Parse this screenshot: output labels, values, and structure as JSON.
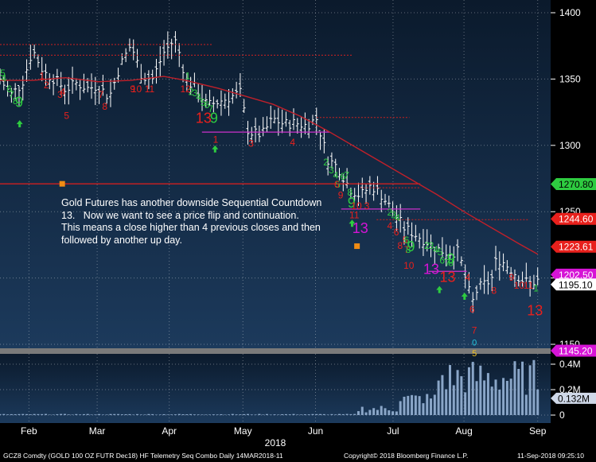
{
  "chart_data": [
    {
      "type": "candlestick",
      "title": "",
      "x_axis": {
        "month_labels": [
          "Feb",
          "Mar",
          "Apr",
          "May",
          "Jun",
          "Jul",
          "Aug",
          "Sep"
        ],
        "year_label": "2018"
      },
      "y_axis": {
        "ylim": [
          1145,
          1410
        ],
        "ticks": [
          1400,
          1350,
          1300,
          1250,
          1200,
          1150
        ],
        "side": "right"
      },
      "price_labels": [
        {
          "value": "1270.80",
          "price": 1270.8,
          "color": "#2ecc40",
          "text_color": "#000000"
        },
        {
          "value": "1244.60",
          "price": 1244.6,
          "color": "#e8201c",
          "text_color": "#ffffff"
        },
        {
          "value": "1223.61",
          "price": 1223.61,
          "color": "#e8201c",
          "text_color": "#ffffff"
        },
        {
          "value": "1202.50",
          "price": 1202.5,
          "color": "#d614d6",
          "text_color": "#ffffff"
        },
        {
          "value": "1195.10",
          "price": 1195.1,
          "color": "#ffffff",
          "text_color": "#000000"
        },
        {
          "value": "1145.20",
          "price": 1145.2,
          "color": "#d614d6",
          "text_color": "#ffffff"
        }
      ],
      "moving_average": {
        "color": "#c0202a",
        "points": [
          [
            0.0,
            1349
          ],
          [
            0.06,
            1349
          ],
          [
            0.12,
            1351
          ],
          [
            0.18,
            1348
          ],
          [
            0.24,
            1349
          ],
          [
            0.3,
            1352
          ],
          [
            0.34,
            1349
          ],
          [
            0.4,
            1343
          ],
          [
            0.45,
            1337
          ],
          [
            0.5,
            1331
          ],
          [
            0.55,
            1322
          ],
          [
            0.6,
            1311
          ],
          [
            0.65,
            1299
          ],
          [
            0.7,
            1287
          ],
          [
            0.75,
            1275
          ],
          [
            0.8,
            1263
          ],
          [
            0.85,
            1250
          ],
          [
            0.9,
            1238
          ],
          [
            0.95,
            1226
          ],
          [
            0.985,
            1218
          ]
        ]
      },
      "horizontal_levels": [
        {
          "price": 1376,
          "x0": 0.0,
          "x1": 0.39,
          "color": "#d02020",
          "style": "dotted"
        },
        {
          "price": 1368,
          "x0": 0.0,
          "x1": 0.645,
          "color": "#d02020",
          "style": "dotted"
        },
        {
          "price": 1321,
          "x0": 0.58,
          "x1": 0.75,
          "color": "#d02020",
          "style": "dotted"
        },
        {
          "price": 1271,
          "x0": 0.0,
          "x1": 0.77,
          "color": "#d02020",
          "style": "solid"
        },
        {
          "price": 1268,
          "x0": 0.66,
          "x1": 0.77,
          "color": "#d02020",
          "style": "dotted"
        },
        {
          "price": 1244,
          "x0": 0.69,
          "x1": 0.97,
          "color": "#d02020",
          "style": "dotted"
        },
        {
          "price": 1310,
          "x0": 0.37,
          "x1": 0.605,
          "color": "#cc30cc",
          "style": "solid"
        },
        {
          "price": 1252,
          "x0": 0.625,
          "x1": 0.77,
          "color": "#cc30cc",
          "style": "solid"
        },
        {
          "price": 1205,
          "x0": 0.785,
          "x1": 0.855,
          "color": "#cc30cc",
          "style": "solid"
        }
      ],
      "volume": {
        "ylim": [
          0,
          460000
        ],
        "ticks": [
          {
            "value": 400000,
            "label": "0.4M"
          },
          {
            "value": 200000,
            "label": "0.2M"
          },
          {
            "value": 0,
            "label": "0"
          }
        ],
        "last_label": "0.132M",
        "last_value": 132000
      },
      "annotations": [
        {
          "text": "9",
          "x": 0.035,
          "price": 1329,
          "color": "#2ecc40",
          "size": 18
        },
        {
          "text": "13",
          "x": 0.373,
          "price": 1317,
          "color": "#e8201c",
          "size": 18
        },
        {
          "text": "9",
          "x": 0.392,
          "price": 1317,
          "color": "#2ecc40",
          "size": 18
        },
        {
          "text": "9",
          "x": 0.644,
          "price": 1253,
          "color": "#2ecc40",
          "size": 18
        },
        {
          "text": "13",
          "x": 0.66,
          "price": 1234,
          "color": "#d614d6",
          "size": 18
        },
        {
          "text": "9",
          "x": 0.753,
          "price": 1220,
          "color": "#2ecc40",
          "size": 18
        },
        {
          "text": "13",
          "x": 0.79,
          "price": 1203,
          "color": "#d614d6",
          "size": 18
        },
        {
          "text": "13",
          "x": 0.82,
          "price": 1197,
          "color": "#e8201c",
          "size": 18
        },
        {
          "text": "9",
          "x": 0.826,
          "price": 1211,
          "color": "#2ecc40",
          "size": 18
        },
        {
          "text": "13",
          "x": 0.98,
          "price": 1172,
          "color": "#e8201c",
          "size": 18
        },
        {
          "text": "4",
          "x": 0.007,
          "price": 1348,
          "color": "#2ecc40",
          "size": 12
        },
        {
          "text": "6",
          "x": 0.017,
          "price": 1340,
          "color": "#2ecc40",
          "size": 12
        },
        {
          "text": "5",
          "x": 0.005,
          "price": 1352,
          "color": "#2ecc40",
          "size": 12
        },
        {
          "text": "8",
          "x": 0.028,
          "price": 1331,
          "color": "#2ecc40",
          "size": 12
        },
        {
          "text": "7",
          "x": 0.021,
          "price": 1336,
          "color": "#2ecc40",
          "size": 12
        },
        {
          "text": "1",
          "x": 0.077,
          "price": 1350,
          "color": "#e8201c",
          "size": 12
        },
        {
          "text": "2",
          "x": 0.085,
          "price": 1343,
          "color": "#e8201c",
          "size": 12
        },
        {
          "text": "3",
          "x": 0.11,
          "price": 1336,
          "color": "#e8201c",
          "size": 12
        },
        {
          "text": "4",
          "x": 0.115,
          "price": 1338,
          "color": "#e8201c",
          "size": 12
        },
        {
          "text": "5",
          "x": 0.122,
          "price": 1320,
          "color": "#e8201c",
          "size": 12
        },
        {
          "text": "7",
          "x": 0.185,
          "price": 1336,
          "color": "#e8201c",
          "size": 12
        },
        {
          "text": "8",
          "x": 0.192,
          "price": 1327,
          "color": "#e8201c",
          "size": 12
        },
        {
          "text": "9",
          "x": 0.243,
          "price": 1340,
          "color": "#e8201c",
          "size": 12
        },
        {
          "text": "10",
          "x": 0.25,
          "price": 1340,
          "color": "#e8201c",
          "size": 12
        },
        {
          "text": "11",
          "x": 0.274,
          "price": 1340,
          "color": "#e8201c",
          "size": 12
        },
        {
          "text": "1",
          "x": 0.344,
          "price": 1350,
          "color": "#2ecc40",
          "size": 12
        },
        {
          "text": "2",
          "x": 0.35,
          "price": 1338,
          "color": "#2ecc40",
          "size": 12
        },
        {
          "text": "3",
          "x": 0.357,
          "price": 1337,
          "color": "#2ecc40",
          "size": 12
        },
        {
          "text": "4",
          "x": 0.364,
          "price": 1334,
          "color": "#2ecc40",
          "size": 12
        },
        {
          "text": "5",
          "x": 0.372,
          "price": 1330,
          "color": "#2ecc40",
          "size": 12
        },
        {
          "text": "6",
          "x": 0.379,
          "price": 1328,
          "color": "#2ecc40",
          "size": 12
        },
        {
          "text": "7",
          "x": 0.386,
          "price": 1325,
          "color": "#2ecc40",
          "size": 12
        },
        {
          "text": "12",
          "x": 0.34,
          "price": 1340,
          "color": "#e8201c",
          "size": 12
        },
        {
          "text": "1",
          "x": 0.395,
          "price": 1302,
          "color": "#e8201c",
          "size": 12
        },
        {
          "text": "3",
          "x": 0.46,
          "price": 1299,
          "color": "#e8201c",
          "size": 12
        },
        {
          "text": "4",
          "x": 0.536,
          "price": 1300,
          "color": "#e8201c",
          "size": 12
        },
        {
          "text": "2",
          "x": 0.597,
          "price": 1285,
          "color": "#2ecc40",
          "size": 12
        },
        {
          "text": "3",
          "x": 0.607,
          "price": 1279,
          "color": "#2ecc40",
          "size": 12
        },
        {
          "text": "4",
          "x": 0.615,
          "price": 1275,
          "color": "#2ecc40",
          "size": 12
        },
        {
          "text": "6",
          "x": 0.628,
          "price": 1274,
          "color": "#2ecc40",
          "size": 12
        },
        {
          "text": "5",
          "x": 0.619,
          "price": 1268,
          "color": "#2ecc40",
          "size": 12
        },
        {
          "text": "7",
          "x": 0.635,
          "price": 1275,
          "color": "#2ecc40",
          "size": 12
        },
        {
          "text": "8",
          "x": 0.641,
          "price": 1262,
          "color": "#2ecc40",
          "size": 12
        },
        {
          "text": "6",
          "x": 0.617,
          "price": 1268,
          "color": "#e8201c",
          "size": 12
        },
        {
          "text": "9",
          "x": 0.624,
          "price": 1260,
          "color": "#e8201c",
          "size": 12
        },
        {
          "text": "10",
          "x": 0.653,
          "price": 1252,
          "color": "#e8201c",
          "size": 12
        },
        {
          "text": "11",
          "x": 0.649,
          "price": 1245,
          "color": "#e8201c",
          "size": 12
        },
        {
          "text": "3",
          "x": 0.672,
          "price": 1252,
          "color": "#e8201c",
          "size": 12
        },
        {
          "text": "2",
          "x": 0.714,
          "price": 1247,
          "color": "#2ecc40",
          "size": 12
        },
        {
          "text": "3",
          "x": 0.721,
          "price": 1245,
          "color": "#2ecc40",
          "size": 12
        },
        {
          "text": "4",
          "x": 0.728,
          "price": 1243,
          "color": "#2ecc40",
          "size": 12
        },
        {
          "text": "4",
          "x": 0.714,
          "price": 1237,
          "color": "#e8201c",
          "size": 12
        },
        {
          "text": "6",
          "x": 0.726,
          "price": 1232,
          "color": "#e8201c",
          "size": 12
        },
        {
          "text": "5",
          "x": 0.742,
          "price": 1226,
          "color": "#e8201c",
          "size": 12
        },
        {
          "text": "8",
          "x": 0.733,
          "price": 1222,
          "color": "#e8201c",
          "size": 12
        },
        {
          "text": "7",
          "x": 0.745,
          "price": 1219,
          "color": "#e8201c",
          "size": 12
        },
        {
          "text": "10",
          "x": 0.749,
          "price": 1207,
          "color": "#e8201c",
          "size": 12
        },
        {
          "text": "6",
          "x": 0.745,
          "price": 1226,
          "color": "#2ecc40",
          "size": 12
        },
        {
          "text": "8",
          "x": 0.748,
          "price": 1219,
          "color": "#2ecc40",
          "size": 12
        },
        {
          "text": "2",
          "x": 0.782,
          "price": 1222,
          "color": "#2ecc40",
          "size": 12
        },
        {
          "text": "3",
          "x": 0.79,
          "price": 1222,
          "color": "#2ecc40",
          "size": 12
        },
        {
          "text": "4",
          "x": 0.798,
          "price": 1219,
          "color": "#2ecc40",
          "size": 12
        },
        {
          "text": "5",
          "x": 0.806,
          "price": 1217,
          "color": "#2ecc40",
          "size": 12
        },
        {
          "text": "6",
          "x": 0.81,
          "price": 1211,
          "color": "#2ecc40",
          "size": 12
        },
        {
          "text": "7",
          "x": 0.82,
          "price": 1209,
          "color": "#2ecc40",
          "size": 12
        },
        {
          "text": "8",
          "x": 0.826,
          "price": 1209,
          "color": "#2ecc40",
          "size": 12
        },
        {
          "text": "4",
          "x": 0.857,
          "price": 1198,
          "color": "#e8201c",
          "size": 12
        },
        {
          "text": "6",
          "x": 0.865,
          "price": 1174,
          "color": "#e8201c",
          "size": 12
        },
        {
          "text": "7",
          "x": 0.869,
          "price": 1158,
          "color": "#e8201c",
          "size": 12
        },
        {
          "text": "0",
          "x": 0.869,
          "price": 1149,
          "color": "#24c8e0",
          "size": 11
        },
        {
          "text": "5",
          "x": 0.869,
          "price": 1141,
          "color": "#f0c020",
          "size": 11
        },
        {
          "text": "8",
          "x": 0.905,
          "price": 1188,
          "color": "#e8201c",
          "size": 12
        },
        {
          "text": "9",
          "x": 0.937,
          "price": 1198,
          "color": "#e8201c",
          "size": 12
        },
        {
          "text": "10",
          "x": 0.951,
          "price": 1192,
          "color": "#e8201c",
          "size": 12
        },
        {
          "text": "11",
          "x": 0.968,
          "price": 1192,
          "color": "#e8201c",
          "size": 12
        },
        {
          "text": "1",
          "x": 0.982,
          "price": 1190,
          "color": "#2ecc40",
          "size": 12
        }
      ],
      "arrows": [
        {
          "x": 0.036,
          "price": 1316
        },
        {
          "x": 0.394,
          "price": 1297
        },
        {
          "x": 0.645,
          "price": 1241
        },
        {
          "x": 0.805,
          "price": 1191
        },
        {
          "x": 0.851,
          "price": 1186
        }
      ],
      "markers": [
        {
          "x": 0.114,
          "price": 1271,
          "color": "#f08c14"
        },
        {
          "x": 0.654,
          "price": 1224,
          "color": "#f08c14"
        }
      ],
      "annotation_text": "Gold Futures has another downside Sequential Countdown\n13.   Now we want to see a price flip and continuation.\nThis means a close higher than 4 previous closes and then\nfollowed by another up day.",
      "footer": {
        "ticker": "GCZ8 Comdty (GOLD 100 OZ FUTR  Dec18) HF Telemetry Seq Combo  Daily 14MAR2018-11",
        "copyright": "Copyright© 2018 Bloomberg Finance L.P.",
        "timestamp": "11-Sep-2018 09:25:10"
      }
    }
  ]
}
